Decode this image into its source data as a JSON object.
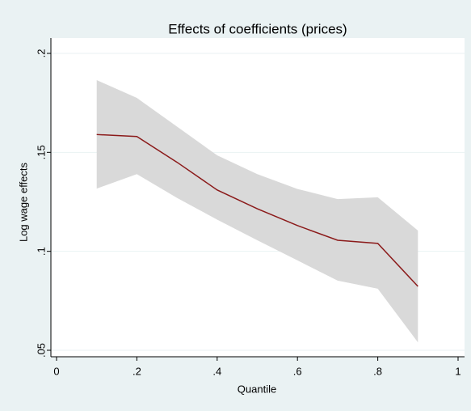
{
  "chart_data": {
    "type": "line",
    "title": "Effects of coefficients (prices)",
    "x_label": "Quantile",
    "y_label": "Log wage effects",
    "x": [
      0.1,
      0.2,
      0.3,
      0.4,
      0.5,
      0.6,
      0.7,
      0.8,
      0.9
    ],
    "series": [
      {
        "color": "#8b1a1a",
        "values": [
          0.159,
          0.158,
          0.145,
          0.131,
          0.1215,
          0.113,
          0.1056,
          0.104,
          0.0823
        ]
      }
    ],
    "band": {
      "color": "#d9d9d9",
      "lower": [
        0.1317,
        0.139,
        0.127,
        0.116,
        0.1056,
        0.0954,
        0.0852,
        0.0811,
        0.054
      ],
      "upper": [
        0.1865,
        0.1775,
        0.163,
        0.1485,
        0.139,
        0.1315,
        0.1264,
        0.1273,
        0.1105
      ]
    },
    "xlim": [
      0,
      1
    ],
    "ylim": [
      0.05,
      0.2
    ],
    "xticks": [
      0,
      {
        "value": 0.2,
        "label": ".2"
      },
      {
        "value": 0.4,
        "label": ".4"
      },
      {
        "value": 0.6,
        "label": ".6"
      },
      {
        "value": 0.8,
        "label": ".8"
      },
      1
    ],
    "yticks": [
      {
        "value": 0.05,
        "label": ".05"
      },
      {
        "value": 0.1,
        "label": ".1"
      },
      {
        "value": 0.15,
        "label": ".15"
      },
      {
        "value": 0.2,
        "label": ".2"
      }
    ],
    "grid": true
  }
}
